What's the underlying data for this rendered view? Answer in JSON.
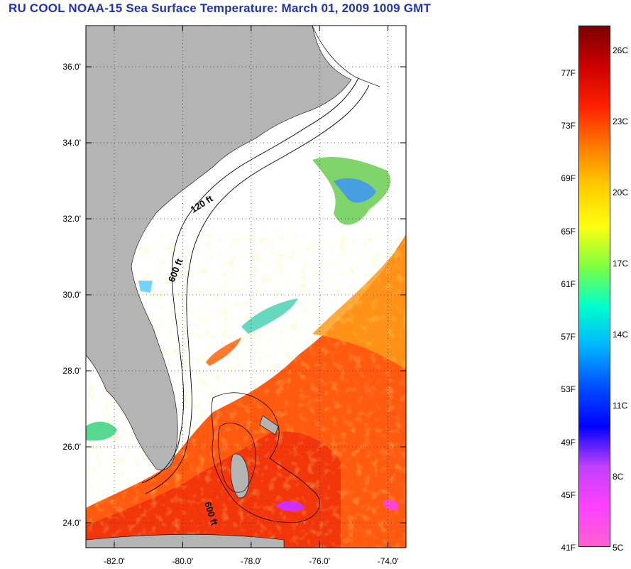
{
  "title": "RU COOL  NOAA-15  Sea Surface Temperature:  March 01, 2009 1009 GMT",
  "map": {
    "lat_ticks": [
      {
        "label": "36.0'",
        "lat": 36
      },
      {
        "label": "34.0'",
        "lat": 34
      },
      {
        "label": "32.0'",
        "lat": 32
      },
      {
        "label": "30.0'",
        "lat": 30
      },
      {
        "label": "28.0'",
        "lat": 28
      },
      {
        "label": "26.0'",
        "lat": 26
      },
      {
        "label": "24.0'",
        "lat": 24
      }
    ],
    "lon_ticks": [
      {
        "label": "-82.0'",
        "lon": -82
      },
      {
        "label": "-80.0'",
        "lon": -80
      },
      {
        "label": "-78.0'",
        "lon": -78
      },
      {
        "label": "-76.0'",
        "lon": -76
      },
      {
        "label": "-74.0'",
        "lon": -74
      }
    ],
    "contours": [
      {
        "label": "120 ft"
      },
      {
        "label": "600 ft"
      },
      {
        "label": "600 ft"
      }
    ]
  },
  "colorbar": {
    "fahrenheit_labels": [
      "77F",
      "73F",
      "69F",
      "65F",
      "61F",
      "57F",
      "53F",
      "49F",
      "45F",
      "41F"
    ],
    "celsius_labels": [
      "26C",
      "23C",
      "20C",
      "17C",
      "14C",
      "11C",
      "8C",
      "5C"
    ],
    "colors": [
      "#7a0000",
      "#cc0000",
      "#ff2000",
      "#ff7a00",
      "#ffcc00",
      "#ffff10",
      "#80ff40",
      "#00ffcc",
      "#00b4ff",
      "#0050ff",
      "#0000ff",
      "#c040ff",
      "#ff40ff",
      "#ff60d0"
    ]
  }
}
